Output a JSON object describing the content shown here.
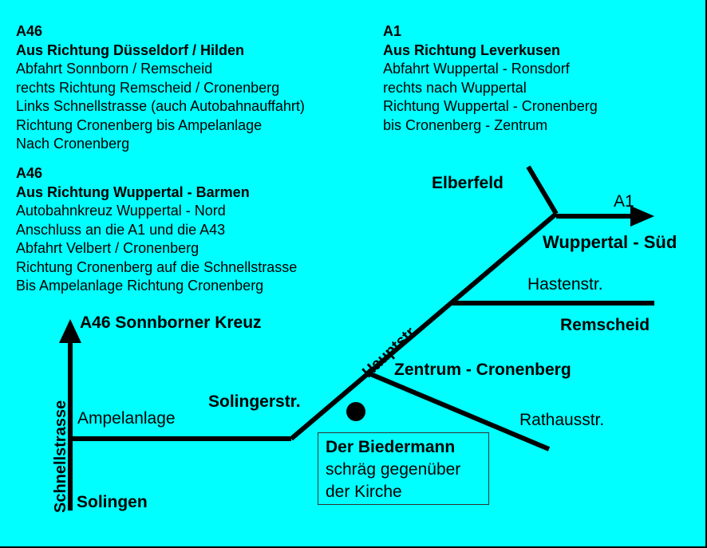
{
  "directions": [
    {
      "road": "A46",
      "heading": "Aus Richtung Düsseldorf / Hilden",
      "steps": [
        "Abfahrt Sonnborn / Remscheid",
        "rechts Richtung Remscheid / Cronenberg",
        "Links Schnellstrasse (auch Autobahnauffahrt)",
        "Richtung Cronenberg bis Ampelanlage",
        "Nach Cronenberg"
      ]
    },
    {
      "road": "A1",
      "heading": "Aus Richtung Leverkusen",
      "steps": [
        "Abfahrt Wuppertal - Ronsdorf",
        "rechts nach Wuppertal",
        "Richtung Wuppertal - Cronenberg",
        "bis Cronenberg - Zentrum"
      ]
    },
    {
      "road": "A46",
      "heading": "Aus Richtung Wuppertal - Barmen",
      "steps": [
        "Autobahnkreuz Wuppertal - Nord",
        "Anschluss an die A1 und die A43",
        "Abfahrt Velbert / Cronenberg",
        "Richtung Cronenberg auf die Schnellstrasse",
        "Bis Ampelanlage Richtung Cronenberg"
      ]
    }
  ],
  "map_labels": {
    "sonnborner_kreuz": "A46 Sonnborner Kreuz",
    "schnellstrasse": "Schnellstrasse",
    "solingen": "Solingen",
    "ampelanlage": "Ampelanlage",
    "solingerstr": "Solingerstr.",
    "hauptstr": "Hauptstr.",
    "zentrum": "Zentrum - Cronenberg",
    "rathausstr": "Rathausstr.",
    "hastenstr": "Hastenstr.",
    "remscheid": "Remscheid",
    "elberfeld": "Elberfeld",
    "a1": "A1",
    "wuppertal_sued": "Wuppertal - Süd"
  },
  "destination": {
    "name": "Der Biedermann",
    "line2": "schräg gegenüber",
    "line3": "der Kirche"
  },
  "colors": {
    "background": "#00ffff",
    "roads": "#000000"
  }
}
